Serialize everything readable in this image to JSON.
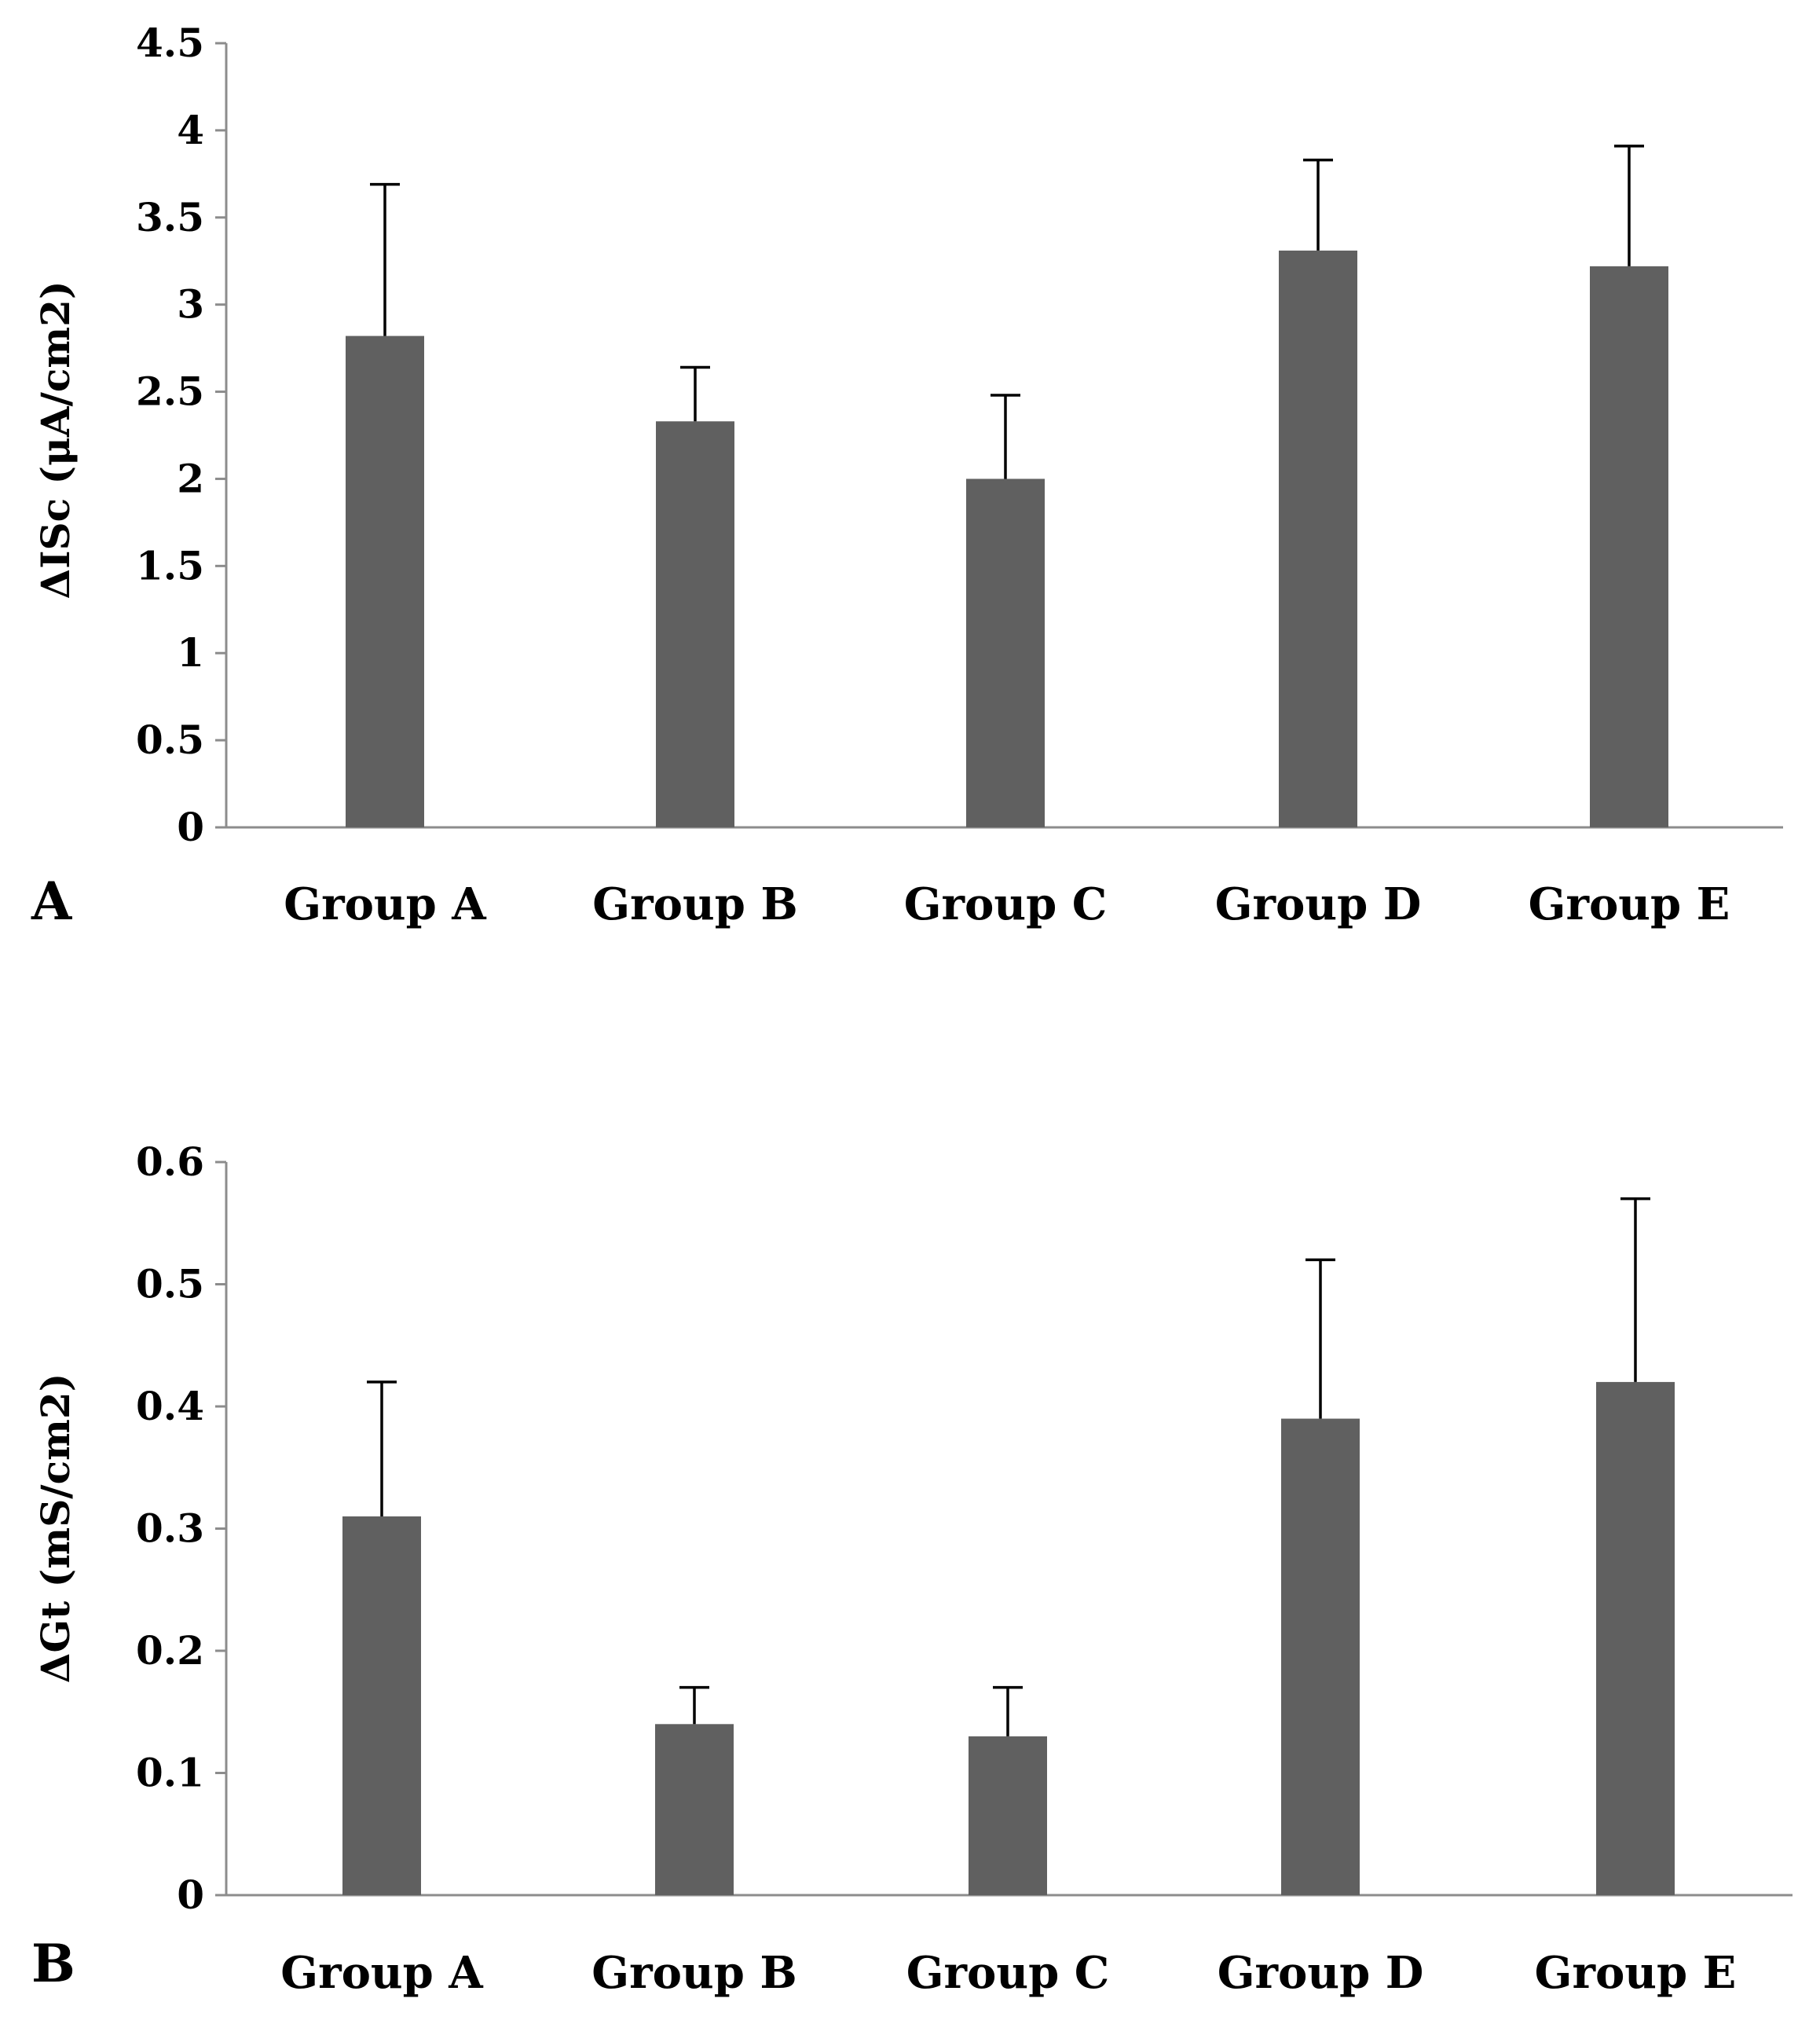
{
  "chart_data": [
    {
      "type": "bar",
      "panel_label": "A",
      "title": "",
      "xlabel": "",
      "ylabel": "ΔISc (μA/cm2)",
      "categories": [
        "Group A",
        "Group B",
        "Group C",
        "Group D",
        "Group E"
      ],
      "values": [
        2.82,
        2.33,
        2.0,
        3.31,
        3.22
      ],
      "error_upper": [
        0.87,
        0.31,
        0.48,
        0.52,
        0.69
      ],
      "ylim": [
        0,
        4.5
      ],
      "yticks": [
        0,
        0.5,
        1,
        1.5,
        2,
        2.5,
        3,
        3.5,
        4,
        4.5
      ],
      "ytick_labels": [
        "0",
        "0.5",
        "1",
        "1.5",
        "2",
        "2.5",
        "3",
        "3.5",
        "4",
        "4.5"
      ],
      "grid": false,
      "bar_color": "#606060",
      "axis_color": "#8c8c8c",
      "error_color": "#000000"
    },
    {
      "type": "bar",
      "panel_label": "B",
      "title": "",
      "xlabel": "",
      "ylabel": "ΔGt (mS/cm2)",
      "categories": [
        "Group A",
        "Group B",
        "Group C",
        "Group D",
        "Group E"
      ],
      "values": [
        0.31,
        0.14,
        0.13,
        0.39,
        0.42
      ],
      "error_upper": [
        0.11,
        0.03,
        0.04,
        0.13,
        0.15
      ],
      "ylim": [
        0,
        0.6
      ],
      "yticks": [
        0,
        0.1,
        0.2,
        0.3,
        0.4,
        0.5,
        0.6
      ],
      "ytick_labels": [
        "0",
        "0.1",
        "0.2",
        "0.3",
        "0.4",
        "0.5",
        "0.6"
      ],
      "grid": false,
      "bar_color": "#606060",
      "axis_color": "#8c8c8c",
      "error_color": "#000000"
    }
  ]
}
